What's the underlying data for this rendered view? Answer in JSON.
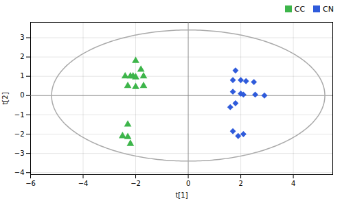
{
  "chart_data": {
    "type": "scatter",
    "xlabel": "t[1]",
    "ylabel": "t[2]",
    "xlim": [
      -6,
      5.5
    ],
    "ylim": [
      -4.1,
      3.8
    ],
    "xticks": [
      -6,
      -4,
      -2,
      0,
      2,
      4
    ],
    "yticks": [
      -4,
      -3,
      -2,
      -1,
      0,
      1,
      2,
      3
    ],
    "grid": true,
    "legend": "upper right",
    "hlines": [
      0
    ],
    "vlines": [
      0
    ],
    "ellipse": {
      "cx": 0.0,
      "cy": 0.0,
      "rx": 5.2,
      "ry": 3.4,
      "color": "#aaaaaa"
    },
    "series": [
      {
        "name": "CC",
        "color": "#3db54a",
        "marker": "triangle",
        "values": [
          [
            -2.0,
            1.8
          ],
          [
            -1.8,
            1.35
          ],
          [
            -2.2,
            1.0
          ],
          [
            -2.4,
            1.0
          ],
          [
            -2.1,
            1.0
          ],
          [
            -2.0,
            0.95
          ],
          [
            -1.7,
            1.0
          ],
          [
            -2.3,
            0.5
          ],
          [
            -2.0,
            0.45
          ],
          [
            -1.7,
            0.5
          ],
          [
            -2.3,
            -1.5
          ],
          [
            -2.5,
            -2.1
          ],
          [
            -2.3,
            -2.15
          ],
          [
            -2.2,
            -2.5
          ]
        ]
      },
      {
        "name": "CN",
        "color": "#2f5bdb",
        "marker": "diamond",
        "values": [
          [
            1.8,
            1.3
          ],
          [
            1.7,
            0.8
          ],
          [
            2.0,
            0.8
          ],
          [
            2.2,
            0.75
          ],
          [
            2.5,
            0.7
          ],
          [
            1.7,
            0.2
          ],
          [
            2.0,
            0.1
          ],
          [
            2.1,
            0.05
          ],
          [
            2.55,
            0.05
          ],
          [
            2.9,
            0.0
          ],
          [
            1.8,
            -0.4
          ],
          [
            1.6,
            -0.6
          ],
          [
            1.7,
            -1.85
          ],
          [
            1.9,
            -2.1
          ],
          [
            2.1,
            -2.0
          ]
        ]
      }
    ]
  }
}
